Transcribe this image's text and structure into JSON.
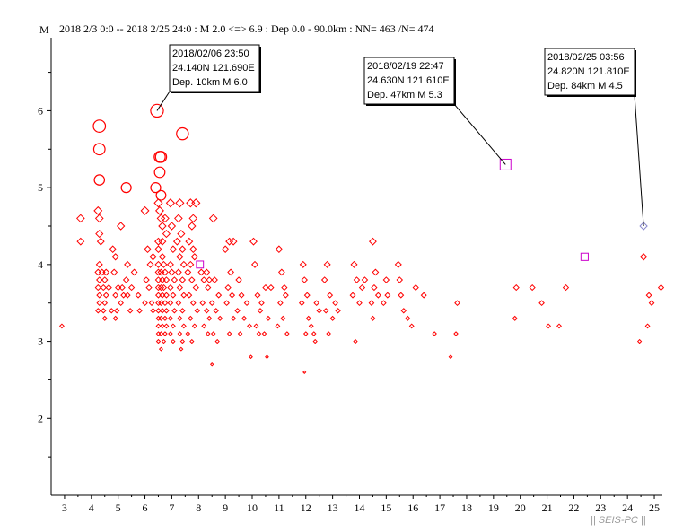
{
  "chart_data": {
    "type": "scatter",
    "header": "2018 2/3 0:0 -- 2018 2/25 24:0  : M 2.0 <=> 6.9   :  Dep 0.0 - 90.0km :  NN= 463 /N= 474",
    "ylabel": "M",
    "watermark": "|| SEIS-PC ||",
    "x_ticks": [
      "3",
      "4",
      "5",
      "6",
      "7",
      "8",
      "9",
      "10",
      "11",
      "12",
      "13",
      "14",
      "15",
      "16",
      "17",
      "18",
      "19",
      "20",
      "21",
      "22",
      "23",
      "24",
      "25"
    ],
    "y_ticks": [
      "2",
      "3",
      "4",
      "5",
      "6"
    ],
    "xlim": [
      2.5,
      25.3
    ],
    "ylim": [
      1.0,
      6.95
    ],
    "colors": {
      "shallow": "#ff0000",
      "deep": "#cc00cc",
      "axis": "#000000"
    },
    "annotations": [
      {
        "lines": [
          "2018/02/06 23:50",
          "24.140N   121.690E",
          "Dep. 10km    M 6.0"
        ],
        "point": [
          6.45,
          6.0
        ]
      },
      {
        "lines": [
          "2018/02/19 22:47",
          "24.630N   121.610E",
          "Dep. 47km    M 5.3"
        ],
        "point": [
          19.45,
          5.3
        ]
      },
      {
        "lines": [
          "2018/02/25 03:56",
          "24.820N   121.810E",
          "Dep. 84km    M 4.5"
        ],
        "point": [
          24.6,
          4.5
        ]
      }
    ],
    "series": [
      {
        "marker": "circle",
        "color": "#ff0000",
        "points": [
          [
            4.3,
            5.8
          ],
          [
            4.3,
            5.5
          ],
          [
            4.3,
            5.1
          ],
          [
            5.3,
            5.0
          ],
          [
            6.4,
            5.0
          ],
          [
            6.45,
            6.0
          ],
          [
            7.4,
            5.7
          ],
          [
            6.55,
            5.4
          ],
          [
            6.6,
            5.4
          ],
          [
            6.55,
            5.2
          ],
          [
            6.6,
            4.9
          ]
        ]
      },
      {
        "marker": "diamond",
        "color": "#ff0000",
        "points": [
          [
            2.9,
            3.2
          ],
          [
            3.6,
            4.6
          ],
          [
            3.6,
            4.3
          ],
          [
            4.25,
            4.7
          ],
          [
            4.3,
            4.6
          ],
          [
            4.3,
            4.4
          ],
          [
            4.35,
            4.3
          ],
          [
            4.3,
            4.0
          ],
          [
            4.25,
            3.9
          ],
          [
            4.4,
            3.9
          ],
          [
            4.55,
            3.9
          ],
          [
            4.3,
            3.8
          ],
          [
            4.5,
            3.8
          ],
          [
            4.25,
            3.7
          ],
          [
            4.45,
            3.7
          ],
          [
            4.65,
            3.7
          ],
          [
            4.3,
            3.6
          ],
          [
            4.55,
            3.6
          ],
          [
            4.3,
            3.5
          ],
          [
            4.5,
            3.5
          ],
          [
            4.25,
            3.4
          ],
          [
            4.45,
            3.4
          ],
          [
            4.5,
            3.3
          ],
          [
            4.75,
            3.4
          ],
          [
            4.8,
            4.2
          ],
          [
            4.9,
            4.1
          ],
          [
            4.85,
            3.9
          ],
          [
            5.0,
            3.7
          ],
          [
            5.15,
            3.7
          ],
          [
            4.9,
            3.6
          ],
          [
            5.1,
            3.5
          ],
          [
            4.95,
            3.4
          ],
          [
            4.9,
            3.3
          ],
          [
            5.2,
            3.6
          ],
          [
            5.1,
            4.5
          ],
          [
            5.35,
            4.0
          ],
          [
            5.3,
            3.8
          ],
          [
            5.5,
            3.7
          ],
          [
            5.35,
            3.6
          ],
          [
            5.45,
            3.4
          ],
          [
            5.6,
            3.9
          ],
          [
            5.75,
            3.6
          ],
          [
            5.8,
            3.4
          ],
          [
            6.0,
            3.5
          ],
          [
            6.0,
            4.7
          ],
          [
            6.1,
            4.2
          ],
          [
            6.3,
            4.1
          ],
          [
            6.2,
            4.0
          ],
          [
            6.05,
            3.8
          ],
          [
            6.15,
            3.7
          ],
          [
            6.25,
            3.5
          ],
          [
            6.3,
            3.4
          ],
          [
            6.5,
            4.8
          ],
          [
            6.55,
            4.7
          ],
          [
            6.6,
            4.6
          ],
          [
            6.75,
            4.6
          ],
          [
            6.65,
            4.5
          ],
          [
            6.8,
            4.4
          ],
          [
            6.5,
            4.3
          ],
          [
            6.65,
            4.3
          ],
          [
            6.5,
            4.2
          ],
          [
            6.65,
            4.1
          ],
          [
            6.5,
            4.0
          ],
          [
            6.7,
            4.0
          ],
          [
            6.5,
            3.9
          ],
          [
            6.6,
            3.9
          ],
          [
            6.75,
            3.9
          ],
          [
            6.5,
            3.8
          ],
          [
            6.65,
            3.8
          ],
          [
            6.8,
            3.8
          ],
          [
            6.5,
            3.7
          ],
          [
            6.6,
            3.7
          ],
          [
            6.7,
            3.7
          ],
          [
            6.5,
            3.6
          ],
          [
            6.65,
            3.6
          ],
          [
            6.8,
            3.6
          ],
          [
            6.5,
            3.5
          ],
          [
            6.6,
            3.5
          ],
          [
            6.75,
            3.5
          ],
          [
            6.5,
            3.4
          ],
          [
            6.65,
            3.4
          ],
          [
            6.8,
            3.4
          ],
          [
            6.5,
            3.3
          ],
          [
            6.6,
            3.3
          ],
          [
            6.75,
            3.3
          ],
          [
            6.5,
            3.2
          ],
          [
            6.65,
            3.2
          ],
          [
            6.8,
            3.2
          ],
          [
            6.5,
            3.1
          ],
          [
            6.6,
            3.1
          ],
          [
            6.75,
            3.1
          ],
          [
            6.5,
            3.0
          ],
          [
            6.7,
            3.0
          ],
          [
            6.6,
            2.9
          ],
          [
            6.95,
            4.8
          ],
          [
            7.0,
            4.5
          ],
          [
            7.05,
            4.2
          ],
          [
            6.95,
            4.0
          ],
          [
            7.0,
            3.9
          ],
          [
            7.1,
            3.8
          ],
          [
            6.95,
            3.7
          ],
          [
            7.05,
            3.6
          ],
          [
            6.95,
            3.5
          ],
          [
            7.1,
            3.4
          ],
          [
            6.95,
            3.3
          ],
          [
            7.05,
            3.2
          ],
          [
            6.95,
            3.1
          ],
          [
            7.05,
            3.0
          ],
          [
            7.3,
            4.8
          ],
          [
            7.25,
            4.6
          ],
          [
            7.35,
            4.4
          ],
          [
            7.2,
            4.3
          ],
          [
            7.4,
            4.2
          ],
          [
            7.3,
            4.1
          ],
          [
            7.45,
            4.0
          ],
          [
            7.25,
            3.9
          ],
          [
            7.4,
            3.8
          ],
          [
            7.3,
            3.7
          ],
          [
            7.45,
            3.6
          ],
          [
            7.25,
            3.5
          ],
          [
            7.4,
            3.4
          ],
          [
            7.3,
            3.3
          ],
          [
            7.45,
            3.2
          ],
          [
            7.3,
            3.1
          ],
          [
            7.4,
            3.0
          ],
          [
            7.35,
            2.9
          ],
          [
            7.7,
            4.8
          ],
          [
            7.8,
            4.6
          ],
          [
            7.75,
            4.5
          ],
          [
            7.9,
            4.8
          ],
          [
            7.65,
            4.3
          ],
          [
            7.8,
            4.2
          ],
          [
            7.7,
            4.0
          ],
          [
            7.85,
            4.1
          ],
          [
            7.6,
            3.9
          ],
          [
            7.75,
            3.8
          ],
          [
            7.9,
            3.7
          ],
          [
            7.65,
            3.6
          ],
          [
            7.8,
            3.5
          ],
          [
            7.95,
            3.4
          ],
          [
            7.7,
            3.3
          ],
          [
            7.85,
            3.2
          ],
          [
            7.6,
            3.1
          ],
          [
            7.75,
            3.0
          ],
          [
            8.1,
            3.9
          ],
          [
            8.3,
            3.9
          ],
          [
            8.2,
            3.8
          ],
          [
            8.35,
            3.7
          ],
          [
            8.15,
            3.5
          ],
          [
            8.3,
            3.4
          ],
          [
            8.4,
            3.3
          ],
          [
            8.2,
            3.2
          ],
          [
            8.35,
            3.1
          ],
          [
            8.4,
            3.8
          ],
          [
            8.55,
            4.6
          ],
          [
            8.6,
            3.8
          ],
          [
            8.75,
            3.6
          ],
          [
            8.5,
            3.5
          ],
          [
            8.65,
            3.4
          ],
          [
            8.8,
            3.3
          ],
          [
            8.55,
            3.1
          ],
          [
            8.7,
            3.0
          ],
          [
            8.5,
            2.7
          ],
          [
            9.0,
            4.2
          ],
          [
            9.15,
            4.3
          ],
          [
            9.3,
            4.3
          ],
          [
            9.2,
            3.9
          ],
          [
            9.1,
            3.7
          ],
          [
            9.25,
            3.6
          ],
          [
            9.05,
            3.5
          ],
          [
            9.3,
            3.3
          ],
          [
            9.15,
            3.1
          ],
          [
            9.5,
            3.8
          ],
          [
            9.6,
            3.6
          ],
          [
            9.45,
            3.4
          ],
          [
            9.7,
            3.3
          ],
          [
            9.55,
            3.1
          ],
          [
            9.8,
            3.5
          ],
          [
            9.9,
            3.2
          ],
          [
            9.95,
            2.8
          ],
          [
            10.05,
            4.3
          ],
          [
            10.1,
            4.0
          ],
          [
            10.2,
            3.6
          ],
          [
            10.3,
            3.4
          ],
          [
            10.15,
            3.2
          ],
          [
            10.25,
            3.1
          ],
          [
            10.35,
            3.5
          ],
          [
            10.5,
            3.7
          ],
          [
            10.6,
            3.3
          ],
          [
            10.45,
            3.1
          ],
          [
            10.7,
            3.7
          ],
          [
            10.55,
            2.8
          ],
          [
            11.0,
            4.2
          ],
          [
            11.1,
            3.9
          ],
          [
            11.2,
            3.7
          ],
          [
            11.05,
            3.5
          ],
          [
            11.25,
            3.6
          ],
          [
            11.15,
            3.3
          ],
          [
            11.3,
            3.1
          ],
          [
            10.95,
            3.2
          ],
          [
            11.9,
            4.0
          ],
          [
            11.95,
            3.8
          ],
          [
            12.05,
            3.6
          ],
          [
            11.85,
            3.5
          ],
          [
            12.1,
            3.3
          ],
          [
            12.2,
            3.2
          ],
          [
            12.0,
            3.1
          ],
          [
            12.3,
            3.1
          ],
          [
            12.4,
            3.5
          ],
          [
            12.5,
            3.4
          ],
          [
            12.35,
            3.0
          ],
          [
            11.95,
            2.6
          ],
          [
            12.8,
            4.0
          ],
          [
            12.7,
            3.8
          ],
          [
            12.9,
            3.6
          ],
          [
            12.75,
            3.4
          ],
          [
            13.0,
            3.3
          ],
          [
            12.85,
            3.1
          ],
          [
            13.1,
            3.5
          ],
          [
            13.2,
            3.4
          ],
          [
            13.8,
            4.0
          ],
          [
            13.9,
            3.8
          ],
          [
            13.75,
            3.6
          ],
          [
            14.0,
            3.5
          ],
          [
            14.1,
            3.7
          ],
          [
            13.85,
            3.0
          ],
          [
            14.2,
            3.8
          ],
          [
            14.5,
            4.3
          ],
          [
            14.6,
            3.9
          ],
          [
            14.55,
            3.7
          ],
          [
            14.45,
            3.5
          ],
          [
            14.7,
            3.6
          ],
          [
            14.5,
            3.3
          ],
          [
            14.9,
            3.5
          ],
          [
            15.05,
            3.6
          ],
          [
            15.0,
            3.8
          ],
          [
            15.45,
            4.0
          ],
          [
            15.5,
            3.8
          ],
          [
            15.55,
            3.6
          ],
          [
            15.65,
            3.4
          ],
          [
            15.8,
            3.3
          ],
          [
            15.95,
            3.2
          ],
          [
            16.1,
            3.7
          ],
          [
            16.4,
            3.6
          ],
          [
            16.8,
            3.1
          ],
          [
            17.4,
            2.8
          ],
          [
            17.6,
            3.1
          ],
          [
            17.65,
            3.5
          ],
          [
            19.85,
            3.7
          ],
          [
            19.8,
            3.3
          ],
          [
            20.45,
            3.7
          ],
          [
            20.8,
            3.5
          ],
          [
            21.05,
            3.2
          ],
          [
            21.45,
            3.2
          ],
          [
            21.7,
            3.7
          ],
          [
            24.45,
            3.0
          ],
          [
            24.6,
            4.1
          ],
          [
            24.8,
            3.6
          ],
          [
            24.9,
            3.5
          ],
          [
            24.75,
            3.2
          ],
          [
            25.25,
            3.7
          ]
        ]
      },
      {
        "marker": "square",
        "color": "#cc00cc",
        "points": [
          [
            19.45,
            5.3
          ],
          [
            8.05,
            4.0
          ],
          [
            22.4,
            4.1
          ]
        ]
      },
      {
        "marker": "diamond",
        "color": "#8888cc",
        "points": [
          [
            24.6,
            4.5
          ]
        ]
      }
    ]
  }
}
